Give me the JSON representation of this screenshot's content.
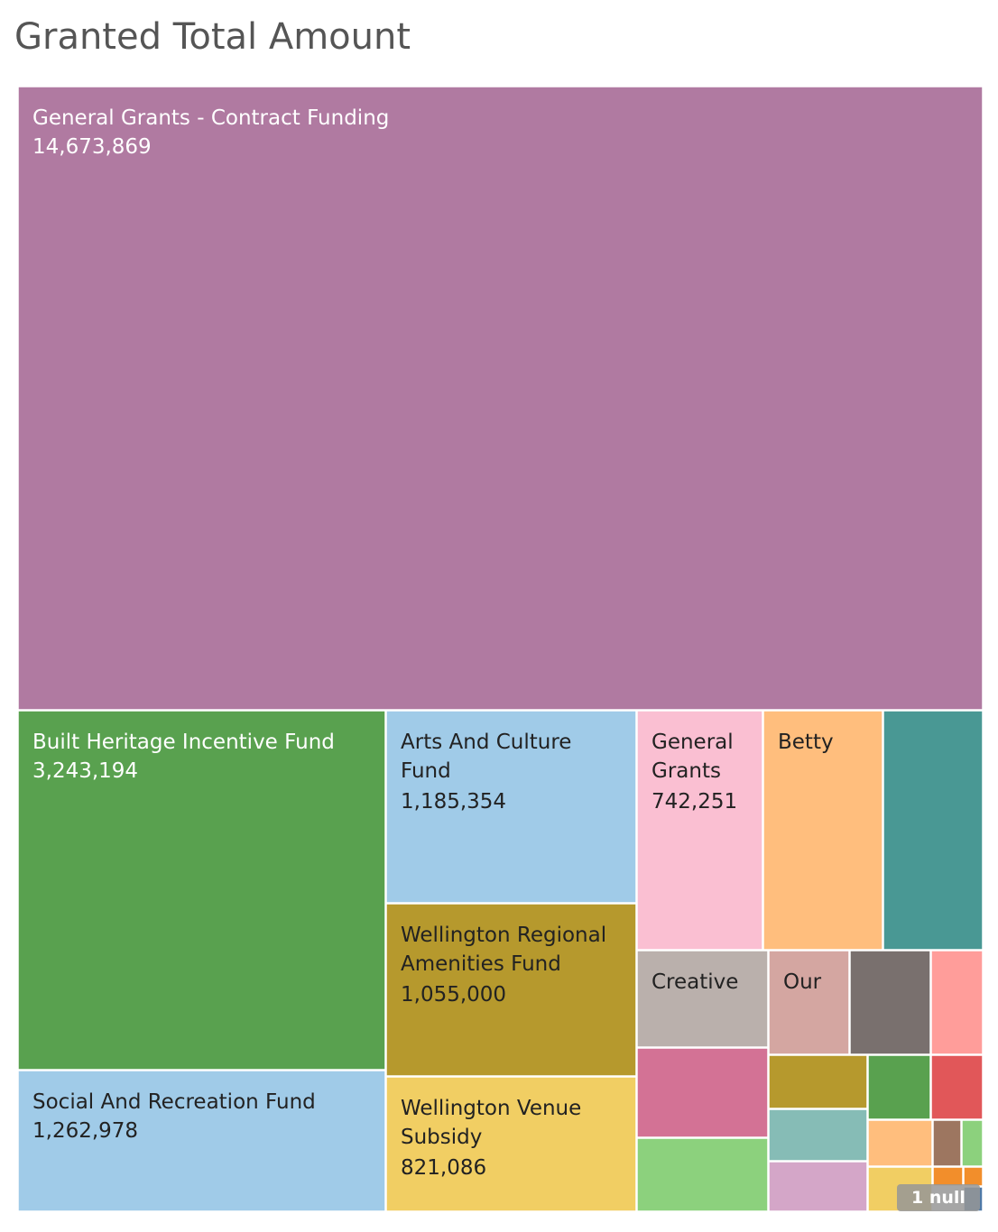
{
  "chart_data": {
    "type": "treemap",
    "title": "Granted Total Amount",
    "items": [
      {
        "label": "General Grants - Contract Funding",
        "value": 14673869,
        "value_label": "14,673,869",
        "color": "#b07aa1"
      },
      {
        "label": "Built Heritage Incentive Fund",
        "value": 3243194,
        "value_label": "3,243,194",
        "color": "#59a14f"
      },
      {
        "label": "Social And Recreation Fund",
        "value": 1262978,
        "value_label": "1,262,978",
        "color": "#a0cbe8"
      },
      {
        "label": "Arts And Culture Fund",
        "value": 1185354,
        "value_label": "1,185,354",
        "color": "#a0cbe8"
      },
      {
        "label": "Wellington Regional Amenities Fund",
        "value": 1055000,
        "value_label": "1,055,000",
        "color": "#b6992d"
      },
      {
        "label": "Wellington Venue Subsidy",
        "value": 821086,
        "value_label": "821,086",
        "color": "#f1ce63"
      },
      {
        "label": "General Grants",
        "value": 742251,
        "value_label": "742,251",
        "color": "#fabfd2"
      },
      {
        "label": "Betty",
        "value": null,
        "value_label": "",
        "color": "#ffbe7d"
      },
      {
        "label": "",
        "value": null,
        "value_label": "",
        "color": "#499894"
      },
      {
        "label": "Creative",
        "value": null,
        "value_label": "",
        "color": "#bab0ac"
      },
      {
        "label": "Our",
        "value": null,
        "value_label": "",
        "color": "#d4a6a1"
      },
      {
        "label": "",
        "value": null,
        "value_label": "",
        "color": "#79706e"
      },
      {
        "label": "",
        "value": null,
        "value_label": "",
        "color": "#ff9d9a"
      },
      {
        "label": "",
        "value": null,
        "value_label": "",
        "color": "#d37295"
      },
      {
        "label": "",
        "value": null,
        "value_label": "",
        "color": "#8cd17d"
      },
      {
        "label": "",
        "value": null,
        "value_label": "",
        "color": "#b6992d"
      },
      {
        "label": "",
        "value": null,
        "value_label": "",
        "color": "#59a14f"
      },
      {
        "label": "",
        "value": null,
        "value_label": "",
        "color": "#e15759"
      },
      {
        "label": "",
        "value": null,
        "value_label": "",
        "color": "#86bcb6"
      },
      {
        "label": "",
        "value": null,
        "value_label": "",
        "color": "#ffbe7d"
      },
      {
        "label": "",
        "value": null,
        "value_label": "",
        "color": "#9d7660"
      },
      {
        "label": "",
        "value": null,
        "value_label": "",
        "color": "#8cd17d"
      },
      {
        "label": "",
        "value": null,
        "value_label": "",
        "color": "#d4a6c8"
      },
      {
        "label": "",
        "value": null,
        "value_label": "",
        "color": "#f1ce63"
      },
      {
        "label": "",
        "value": null,
        "value_label": "",
        "color": "#f28e2b"
      },
      {
        "label": "",
        "value": null,
        "value_label": "",
        "color": "#f28e2b"
      },
      {
        "label": "",
        "value": null,
        "value_label": "",
        "color": "#4e79a7"
      }
    ],
    "null_indicator": "1 null"
  }
}
